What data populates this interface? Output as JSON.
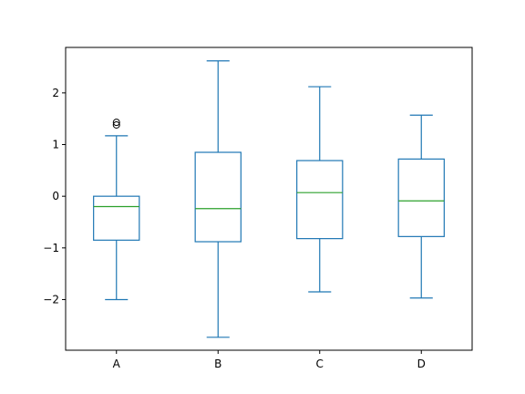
{
  "chart_data": {
    "type": "box",
    "title": "",
    "xlabel": "",
    "ylabel": "",
    "ylim": [
      -2.98,
      2.88
    ],
    "yticks": [
      -2,
      -1,
      0,
      1,
      2
    ],
    "ytick_labels": [
      "−2",
      "−1",
      "0",
      "1",
      "2"
    ],
    "categories": [
      "A",
      "B",
      "C",
      "D"
    ],
    "boxes": [
      {
        "name": "A",
        "whisker_low": -2.0,
        "q1": -0.85,
        "median": -0.2,
        "q3": 0.0,
        "whisker_high": 1.17,
        "fliers": [
          1.38,
          1.43
        ]
      },
      {
        "name": "B",
        "whisker_low": -2.73,
        "q1": -0.88,
        "median": -0.24,
        "q3": 0.85,
        "whisker_high": 2.62,
        "fliers": []
      },
      {
        "name": "C",
        "whisker_low": -1.85,
        "q1": -0.82,
        "median": 0.07,
        "q3": 0.69,
        "whisker_high": 2.12,
        "fliers": []
      },
      {
        "name": "D",
        "whisker_low": -1.97,
        "q1": -0.78,
        "median": -0.09,
        "q3": 0.72,
        "whisker_high": 1.57,
        "fliers": []
      }
    ],
    "grid": false,
    "colors": {
      "box": "#1f77b4",
      "median": "#2ca02c",
      "flier": "#000000",
      "axes": "#000000"
    }
  }
}
